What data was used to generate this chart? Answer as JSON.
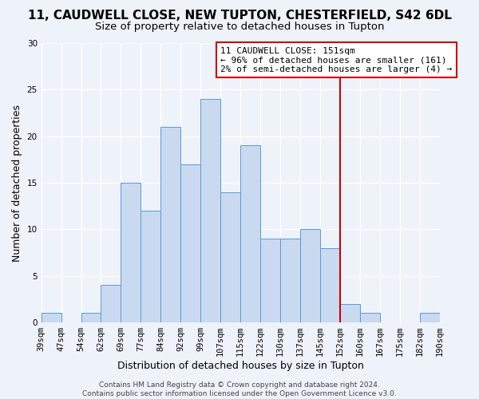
{
  "title": "11, CAUDWELL CLOSE, NEW TUPTON, CHESTERFIELD, S42 6DL",
  "subtitle": "Size of property relative to detached houses in Tupton",
  "xlabel": "Distribution of detached houses by size in Tupton",
  "ylabel": "Number of detached properties",
  "bin_labels": [
    "39sqm",
    "47sqm",
    "54sqm",
    "62sqm",
    "69sqm",
    "77sqm",
    "84sqm",
    "92sqm",
    "99sqm",
    "107sqm",
    "115sqm",
    "122sqm",
    "130sqm",
    "137sqm",
    "145sqm",
    "152sqm",
    "160sqm",
    "167sqm",
    "175sqm",
    "182sqm",
    "190sqm"
  ],
  "bar_heights": [
    1,
    0,
    1,
    4,
    15,
    12,
    21,
    17,
    24,
    14,
    19,
    9,
    9,
    10,
    8,
    2,
    1,
    0,
    0,
    1
  ],
  "bar_color": "#c9d9f0",
  "bar_edge_color": "#5b9bd5",
  "vline_x_index": 15,
  "vline_color": "#cc0000",
  "annotation_text": "11 CAUDWELL CLOSE: 151sqm\n← 96% of detached houses are smaller (161)\n2% of semi-detached houses are larger (4) →",
  "annotation_box_edge": "#cc0000",
  "annotation_box_fill": "#ffffff",
  "footer_text": "Contains HM Land Registry data © Crown copyright and database right 2024.\nContains public sector information licensed under the Open Government Licence v3.0.",
  "ylim": [
    0,
    30
  ],
  "background_color": "#eef2f9",
  "grid_color": "#ffffff",
  "title_fontsize": 11,
  "subtitle_fontsize": 9.5,
  "axis_label_fontsize": 9,
  "tick_fontsize": 7.5,
  "footer_fontsize": 6.5,
  "annotation_fontsize": 8
}
